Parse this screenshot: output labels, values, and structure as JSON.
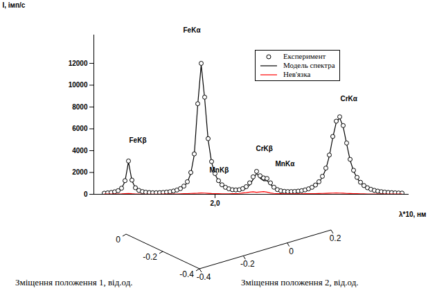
{
  "chart_data": [
    {
      "type": "line",
      "x_label": "λ*10, нм",
      "y_label": "I, імп/с",
      "xlim": [
        1.65,
        2.56
      ],
      "xticks": [
        {
          "value": 2.0,
          "label": "2,0"
        }
      ],
      "ylim": [
        0,
        14600
      ],
      "yticks": [
        0,
        2000,
        4000,
        6000,
        8000,
        10000,
        12000
      ],
      "legend": "top-right",
      "x": [
        1.68,
        1.69,
        1.7,
        1.71,
        1.72,
        1.73,
        1.74,
        1.75,
        1.76,
        1.77,
        1.78,
        1.79,
        1.8,
        1.81,
        1.82,
        1.83,
        1.84,
        1.85,
        1.86,
        1.87,
        1.88,
        1.89,
        1.9,
        1.91,
        1.92,
        1.93,
        1.94,
        1.95,
        1.96,
        1.97,
        1.98,
        1.99,
        2.0,
        2.01,
        2.02,
        2.03,
        2.04,
        2.05,
        2.06,
        2.07,
        2.08,
        2.09,
        2.1,
        2.11,
        2.12,
        2.13,
        2.14,
        2.15,
        2.16,
        2.17,
        2.18,
        2.19,
        2.2,
        2.21,
        2.22,
        2.23,
        2.24,
        2.25,
        2.26,
        2.27,
        2.28,
        2.29,
        2.3,
        2.31,
        2.32,
        2.33,
        2.34,
        2.35,
        2.36,
        2.37,
        2.38,
        2.39,
        2.4,
        2.41,
        2.42,
        2.43,
        2.44,
        2.45,
        2.46,
        2.47,
        2.48,
        2.49,
        2.5,
        2.51,
        2.52,
        2.53,
        2.54
      ],
      "series": [
        {
          "name": "Модель спектра",
          "type": "line",
          "color": "#000000",
          "values": [
            80,
            105,
            140,
            210,
            300,
            520,
            1190,
            2970,
            1250,
            570,
            340,
            235,
            175,
            150,
            130,
            125,
            135,
            150,
            180,
            215,
            270,
            360,
            480,
            700,
            1090,
            1920,
            3610,
            8200,
            11880,
            8790,
            5010,
            2930,
            1840,
            1200,
            830,
            600,
            460,
            370,
            340,
            340,
            400,
            550,
            850,
            1370,
            1920,
            1480,
            1250,
            1250,
            930,
            570,
            370,
            270,
            230,
            210,
            210,
            220,
            250,
            290,
            350,
            450,
            580,
            790,
            1080,
            1570,
            2310,
            3500,
            5190,
            6580,
            6990,
            6200,
            4620,
            3130,
            2140,
            1500,
            1060,
            760,
            570,
            430,
            330,
            260,
            220,
            180,
            150,
            130,
            110,
            100,
            90
          ]
        },
        {
          "name": "Експеримент",
          "type": "scatter",
          "marker": "circle",
          "color": "#000000",
          "values": [
            100,
            130,
            170,
            230,
            330,
            560,
            1250,
            3050,
            1300,
            600,
            360,
            250,
            190,
            160,
            140,
            140,
            150,
            170,
            200,
            240,
            300,
            390,
            520,
            750,
            1150,
            2000,
            3700,
            8300,
            12000,
            8900,
            5100,
            3000,
            1900,
            1250,
            870,
            640,
            500,
            420,
            400,
            420,
            520,
            700,
            1050,
            1600,
            2100,
            1700,
            1500,
            1450,
            1050,
            650,
            430,
            320,
            270,
            250,
            250,
            260,
            290,
            330,
            400,
            500,
            640,
            850,
            1150,
            1650,
            2400,
            3600,
            5300,
            6700,
            7100,
            6300,
            4700,
            3200,
            2200,
            1550,
            1100,
            800,
            600,
            460,
            360,
            290,
            240,
            200,
            170,
            150,
            130,
            120,
            110
          ]
        },
        {
          "name": "Нев'язка",
          "type": "line",
          "color": "#ff0000",
          "values": [
            20,
            25,
            30,
            20,
            30,
            40,
            60,
            80,
            50,
            30,
            20,
            15,
            15,
            10,
            10,
            15,
            15,
            20,
            20,
            25,
            30,
            30,
            40,
            50,
            60,
            80,
            90,
            100,
            120,
            110,
            90,
            70,
            60,
            50,
            40,
            40,
            40,
            50,
            60,
            80,
            120,
            150,
            200,
            230,
            180,
            220,
            250,
            200,
            120,
            80,
            60,
            50,
            40,
            40,
            40,
            40,
            40,
            40,
            50,
            50,
            60,
            60,
            70,
            80,
            90,
            100,
            110,
            120,
            110,
            100,
            80,
            70,
            60,
            50,
            40,
            40,
            30,
            30,
            30,
            30,
            20,
            20,
            20,
            20,
            20,
            20,
            20
          ]
        }
      ],
      "annotations": [
        {
          "text": "FeKβ",
          "x": 1.752,
          "y": 4760
        },
        {
          "text": "FeKα",
          "x": 1.908,
          "y": 14800
        },
        {
          "text": "MnKβ",
          "x": 1.984,
          "y": 2030
        },
        {
          "text": "CrKβ",
          "x": 2.118,
          "y": 3940
        },
        {
          "text": "MnKα",
          "x": 2.174,
          "y": 2540
        },
        {
          "text": "CrKα",
          "x": 2.362,
          "y": 8510
        }
      ]
    },
    {
      "type": "surface3d",
      "x_label": "Зміщення положення 1, від.од.",
      "y_label": "Зміщення положення 2, від.од.",
      "xlim": [
        -0.4,
        0
      ],
      "xticks": [
        0,
        -0.2,
        -0.4
      ],
      "ylim": [
        -0.4,
        0.2
      ],
      "yticks": [
        -0.4,
        -0.2,
        0,
        0.2
      ]
    }
  ]
}
